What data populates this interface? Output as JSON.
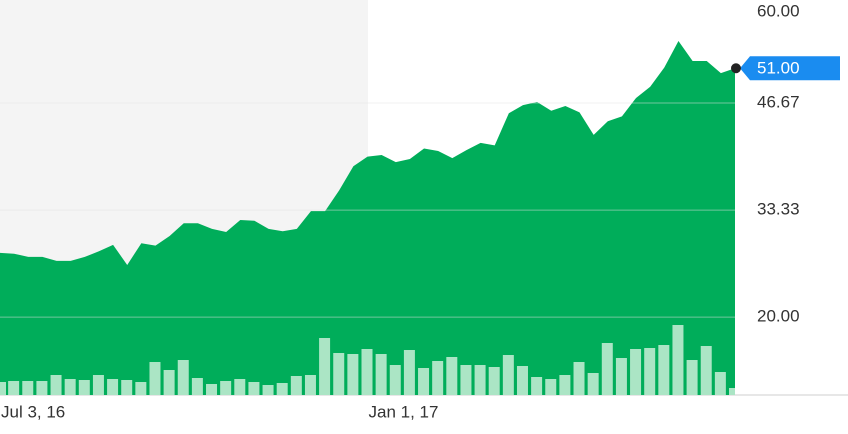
{
  "chart_data": {
    "type": "area",
    "categories": [
      "Jul 3, 16",
      null,
      null,
      null,
      null,
      null,
      null,
      null,
      null,
      null,
      null,
      null,
      null,
      null,
      null,
      null,
      null,
      null,
      null,
      null,
      null,
      null,
      null,
      null,
      null,
      null,
      "Jan 1, 17",
      null,
      null,
      null,
      null,
      null,
      null,
      null,
      null,
      null,
      null,
      null,
      null,
      null,
      null,
      null,
      null,
      null,
      null,
      null,
      null,
      null,
      null,
      null,
      null,
      null,
      null
    ],
    "values": [
      28.0,
      27.9,
      27.5,
      27.5,
      27.0,
      27.0,
      27.5,
      28.2,
      29.0,
      26.5,
      29.2,
      28.9,
      30.1,
      31.7,
      31.7,
      31.0,
      30.6,
      32.1,
      32.0,
      31.0,
      30.7,
      31.0,
      33.2,
      33.2,
      35.8,
      38.8,
      40.0,
      40.2,
      39.3,
      39.7,
      41.0,
      40.7,
      39.8,
      40.8,
      41.7,
      41.4,
      45.4,
      46.4,
      46.8,
      45.7,
      46.3,
      45.5,
      42.7,
      44.4,
      45.0,
      47.3,
      48.7,
      51.1,
      54.4,
      51.9,
      51.9,
      50.4,
      51.0
    ],
    "color": "#00ad5a",
    "volume": [
      13,
      14,
      14,
      14,
      20,
      16,
      15,
      20,
      16,
      15,
      13,
      33,
      25,
      35,
      17,
      11,
      14,
      16,
      13,
      10,
      12,
      19,
      20,
      57,
      42,
      41,
      46,
      41,
      30,
      45,
      27,
      34,
      38,
      30,
      30,
      28,
      40,
      29,
      18,
      16,
      20,
      33,
      22,
      52,
      37,
      46,
      47,
      50,
      70,
      35,
      49,
      23,
      7
    ],
    "volume_color": "#c9eed8",
    "ylim": [
      10.3,
      60
    ],
    "yticks": [
      {
        "value": 60,
        "label": "60.00"
      },
      46.67,
      33.33,
      {
        "value": 20,
        "label": "20.00"
      }
    ],
    "grid": true,
    "last_price": {
      "value": 51,
      "label": "51.00"
    },
    "last_price_color": "#1a8cf0"
  }
}
